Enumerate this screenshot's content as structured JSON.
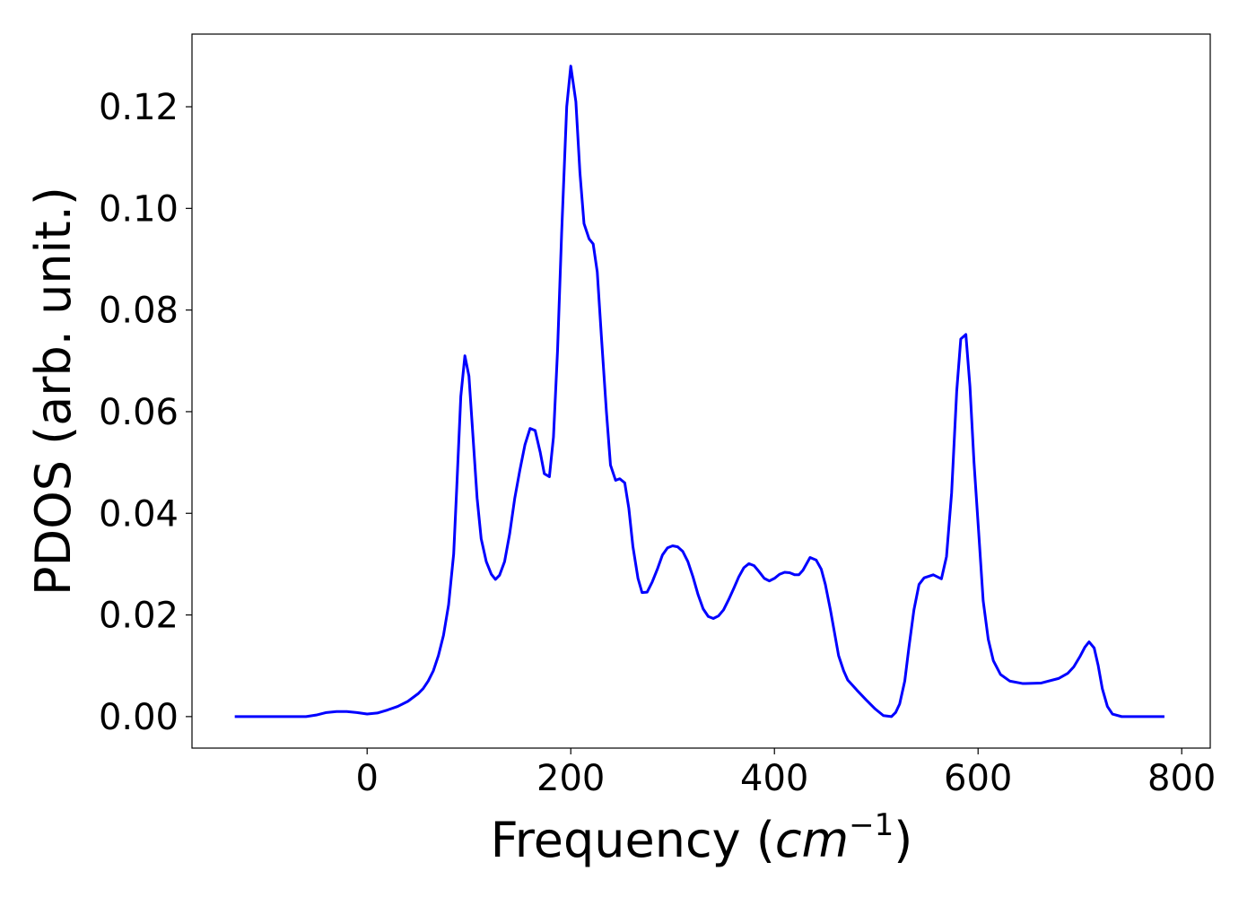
{
  "chart_data": {
    "type": "line",
    "xlabel": [
      "Frequency (",
      "cm",
      "−1",
      ")"
    ],
    "ylabel": "PDOS (arb. unit.)",
    "xlim": [
      -172,
      828
    ],
    "ylim": [
      -0.0062,
      0.1343
    ],
    "xticks": [
      0,
      200,
      400,
      600,
      800
    ],
    "yticks": [
      {
        "value": 0,
        "label": "0.00"
      },
      {
        "value": 0.02,
        "label": "0.02"
      },
      {
        "value": 0.04,
        "label": "0.04"
      },
      {
        "value": 0.06,
        "label": "0.06"
      },
      {
        "value": 0.08,
        "label": "0.08"
      },
      {
        "value": 0.1,
        "label": "0.10"
      },
      {
        "value": 0.12,
        "label": "0.12"
      }
    ],
    "grid": false,
    "series": [
      {
        "color": "#0000ff",
        "x": [
          -130,
          -60,
          -50,
          -40,
          -30,
          -20,
          -10,
          0,
          10,
          20,
          30,
          40,
          50,
          55,
          60,
          65,
          70,
          75,
          80,
          85,
          88,
          92,
          96,
          100,
          104,
          108,
          112,
          117,
          122,
          126,
          130,
          135,
          140,
          145,
          150,
          155,
          160,
          165,
          170,
          174,
          179,
          183,
          187,
          191,
          196,
          200,
          205,
          209,
          213,
          218,
          222,
          226,
          230,
          235,
          239,
          244,
          248,
          253,
          257,
          261,
          266,
          270,
          275,
          280,
          285,
          290,
          295,
          300,
          305,
          310,
          315,
          320,
          325,
          330,
          335,
          340,
          345,
          350,
          355,
          360,
          365,
          370,
          375,
          380,
          385,
          390,
          395,
          400,
          405,
          410,
          415,
          420,
          424,
          428,
          435,
          441,
          446,
          450,
          455,
          459,
          463,
          468,
          472,
          481,
          490,
          499,
          507,
          515,
          519,
          523,
          528,
          532,
          537,
          542,
          547,
          556,
          564,
          569,
          574,
          579,
          583,
          588,
          592,
          596,
          601,
          605,
          610,
          615,
          622,
          631,
          644,
          662,
          679,
          688,
          694,
          700,
          705,
          709,
          714,
          718,
          722,
          727,
          732,
          741,
          783
        ],
        "values": [
          0,
          0,
          0.0003,
          0.0008,
          0.001,
          0.001,
          0.0008,
          0.0005,
          0.0007,
          0.0013,
          0.002,
          0.003,
          0.0045,
          0.0055,
          0.007,
          0.009,
          0.012,
          0.016,
          0.022,
          0.032,
          0.045,
          0.063,
          0.071,
          0.067,
          0.055,
          0.043,
          0.035,
          0.0305,
          0.028,
          0.027,
          0.0278,
          0.0305,
          0.036,
          0.043,
          0.0485,
          0.0535,
          0.0567,
          0.0563,
          0.052,
          0.0478,
          0.0472,
          0.055,
          0.072,
          0.095,
          0.12,
          0.128,
          0.121,
          0.107,
          0.097,
          0.094,
          0.093,
          0.0875,
          0.075,
          0.06,
          0.0495,
          0.0465,
          0.0468,
          0.046,
          0.041,
          0.0335,
          0.0272,
          0.0244,
          0.0245,
          0.0265,
          0.029,
          0.0318,
          0.0332,
          0.0336,
          0.0334,
          0.0325,
          0.0305,
          0.0275,
          0.024,
          0.0212,
          0.0197,
          0.0193,
          0.0198,
          0.021,
          0.023,
          0.0252,
          0.0275,
          0.0293,
          0.0301,
          0.0297,
          0.0285,
          0.0272,
          0.0267,
          0.0272,
          0.028,
          0.0284,
          0.0283,
          0.0279,
          0.0279,
          0.0288,
          0.0313,
          0.0308,
          0.029,
          0.026,
          0.021,
          0.0165,
          0.012,
          0.009,
          0.0072,
          0.0052,
          0.0033,
          0.0015,
          0.0002,
          0,
          0.0008,
          0.0025,
          0.007,
          0.0135,
          0.021,
          0.026,
          0.0273,
          0.0279,
          0.0271,
          0.0315,
          0.044,
          0.064,
          0.0743,
          0.0752,
          0.065,
          0.05,
          0.035,
          0.0228,
          0.0152,
          0.011,
          0.0083,
          0.007,
          0.0065,
          0.0066,
          0.0075,
          0.0085,
          0.0098,
          0.0118,
          0.0137,
          0.0147,
          0.0135,
          0.01,
          0.0055,
          0.002,
          0.0005,
          0,
          0
        ]
      }
    ]
  }
}
